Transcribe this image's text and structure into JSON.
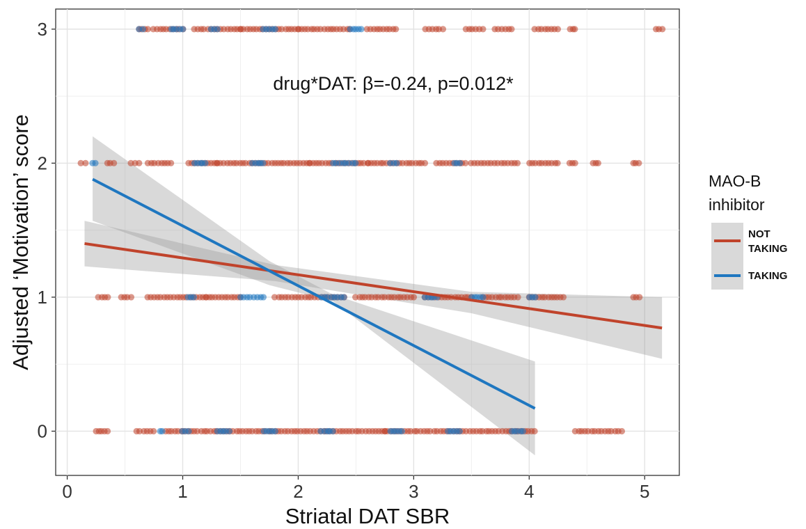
{
  "chart_data": {
    "type": "scatter",
    "xlabel": "Striatal DAT SBR",
    "ylabel": "Adjusted ‘Motivation’ score",
    "xlim": [
      -0.1,
      5.3
    ],
    "ylim": [
      -0.33,
      3.15
    ],
    "x_ticks": [
      "0",
      "1",
      "2",
      "3",
      "4",
      "5"
    ],
    "y_ticks": [
      "0",
      "1",
      "2",
      "3"
    ],
    "grid": true,
    "annotation": "drug*DAT: β=-0.24, p=0.012*",
    "legend": {
      "title": [
        "MAO-B",
        "inhibitor"
      ],
      "position": "right",
      "entries": [
        "NOT TAKING",
        "TAKING"
      ]
    },
    "series": [
      {
        "name": "NOT TAKING",
        "color": "#c0432b",
        "fit": {
          "x0": 0.15,
          "y0": 1.4,
          "x1": 5.15,
          "y1": 0.77
        },
        "ci": {
          "upper": [
            [
              0.15,
              1.57
            ],
            [
              1.8,
              1.24
            ],
            [
              3.5,
              1.04
            ],
            [
              5.15,
              1.0
            ]
          ],
          "lower": [
            [
              0.15,
              1.23
            ],
            [
              1.8,
              1.12
            ],
            [
              3.5,
              0.88
            ],
            [
              5.15,
              0.54
            ]
          ]
        },
        "points": {
          "0": [
            [
              0.25,
              0.35
            ],
            [
              0.6,
              0.75
            ],
            [
              0.85,
              2.75
            ],
            [
              2.75,
              4.05
            ],
            [
              4.4,
              4.8
            ]
          ],
          "1": [
            [
              0.27,
              0.35
            ],
            [
              0.47,
              0.55
            ],
            [
              0.7,
              1.2
            ],
            [
              1.2,
              1.5
            ],
            [
              1.8,
              2.4
            ],
            [
              2.5,
              3.0
            ],
            [
              3.1,
              3.5
            ],
            [
              3.6,
              3.9
            ],
            [
              4.0,
              4.3
            ],
            [
              4.9,
              4.95
            ]
          ],
          "2": [
            [
              0.12,
              0.16
            ],
            [
              0.35,
              0.4
            ],
            [
              0.55,
              0.62
            ],
            [
              0.7,
              0.9
            ],
            [
              1.05,
              1.3
            ],
            [
              1.3,
              2.1
            ],
            [
              2.1,
              2.6
            ],
            [
              2.6,
              3.1
            ],
            [
              3.2,
              3.45
            ],
            [
              3.5,
              3.9
            ],
            [
              4.0,
              4.25
            ],
            [
              4.35,
              4.4
            ],
            [
              4.55,
              4.6
            ],
            [
              4.9,
              4.95
            ]
          ],
          "3": [
            [
              0.62,
              0.7
            ],
            [
              0.75,
              1.0
            ],
            [
              1.1,
              1.5
            ],
            [
              1.5,
              2.0
            ],
            [
              2.0,
              2.45
            ],
            [
              2.6,
              2.85
            ],
            [
              3.1,
              3.25
            ],
            [
              3.45,
              3.6
            ],
            [
              3.7,
              3.85
            ],
            [
              4.05,
              4.25
            ],
            [
              4.35,
              4.4
            ],
            [
              5.1,
              5.15
            ]
          ]
        }
      },
      {
        "name": "TAKING",
        "color": "#1f77c0",
        "fit": {
          "x0": 0.22,
          "y0": 1.88,
          "x1": 4.05,
          "y1": 0.17
        },
        "ci": {
          "upper": [
            [
              0.22,
              2.2
            ],
            [
              1.75,
              1.27
            ],
            [
              2.3,
              1.02
            ],
            [
              4.05,
              0.52
            ]
          ],
          "lower": [
            [
              0.22,
              1.57
            ],
            [
              1.75,
              1.09
            ],
            [
              2.3,
              0.97
            ],
            [
              4.05,
              -0.18
            ]
          ]
        },
        "points": {
          "0": [
            [
              0.8,
              0.82
            ],
            [
              1.0,
              1.05
            ],
            [
              1.3,
              1.4
            ],
            [
              1.7,
              1.8
            ],
            [
              2.2,
              2.3
            ],
            [
              2.8,
              2.9
            ],
            [
              3.3,
              3.4
            ],
            [
              3.85,
              3.95
            ]
          ],
          "1": [
            [
              1.05,
              1.1
            ],
            [
              1.5,
              1.7
            ],
            [
              2.2,
              2.4
            ],
            [
              3.1,
              3.2
            ],
            [
              3.5,
              3.6
            ],
            [
              4.0,
              4.05
            ]
          ],
          "2": [
            [
              0.22,
              0.24
            ],
            [
              1.1,
              1.2
            ],
            [
              1.6,
              1.7
            ],
            [
              2.3,
              2.5
            ],
            [
              2.8,
              2.85
            ],
            [
              3.35,
              3.4
            ]
          ],
          "3": [
            [
              0.62,
              0.66
            ],
            [
              0.9,
              1.0
            ],
            [
              1.25,
              1.3
            ],
            [
              1.7,
              1.8
            ],
            [
              2.45,
              2.55
            ]
          ]
        }
      }
    ]
  }
}
